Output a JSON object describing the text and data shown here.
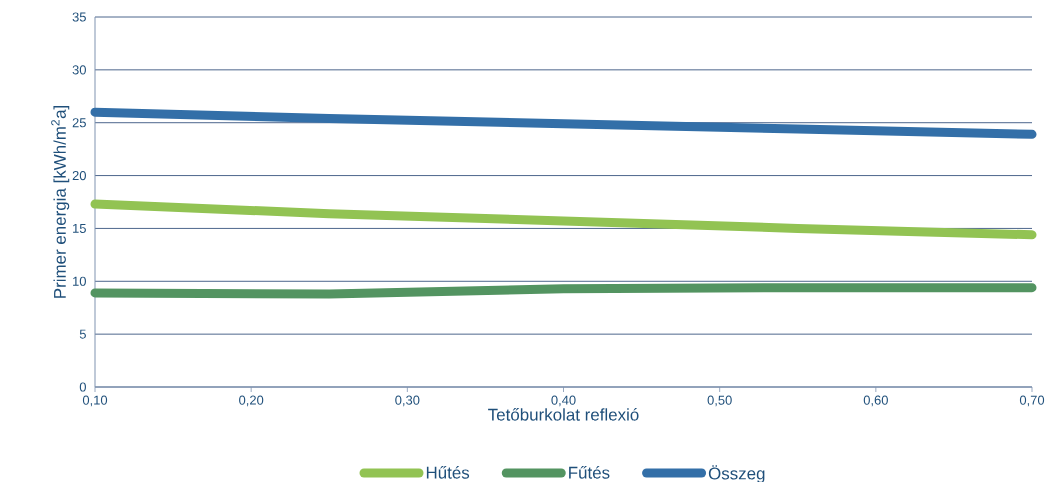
{
  "chart_data": {
    "type": "line",
    "xlabel": "Tetőburkolat reflexió",
    "ylabel": "Primer energia [kWh/m$^{2}$a]",
    "x": [
      0.1,
      0.25,
      0.4,
      0.55,
      0.7
    ],
    "series": [
      {
        "name": "Hűtés",
        "color": "#92c353",
        "values": [
          17.3,
          16.4,
          15.7,
          15.0,
          14.4
        ]
      },
      {
        "name": "Fűtés",
        "color": "#539461",
        "values": [
          8.9,
          8.8,
          9.3,
          9.4,
          9.4
        ]
      },
      {
        "name": "Összeg",
        "color": "#336fa8",
        "values": [
          26.0,
          25.4,
          24.9,
          24.4,
          23.9
        ]
      }
    ],
    "xlim": [
      0.1,
      0.7
    ],
    "xticks": [
      {
        "value": 0.1,
        "label": "0,10"
      },
      {
        "value": 0.2,
        "label": "0,20"
      },
      {
        "value": 0.3,
        "label": "0,30"
      },
      {
        "value": 0.4,
        "label": "0,40"
      },
      {
        "value": 0.5,
        "label": "0,50"
      },
      {
        "value": 0.6,
        "label": "0,60"
      },
      {
        "value": 0.7,
        "label": "0,70"
      }
    ],
    "ylim": [
      0,
      35
    ],
    "yticks": [
      0,
      5,
      10,
      15,
      20,
      25,
      30,
      35
    ],
    "grid": "y",
    "legend": "bottom",
    "marker": "none",
    "line_style": "solid"
  }
}
